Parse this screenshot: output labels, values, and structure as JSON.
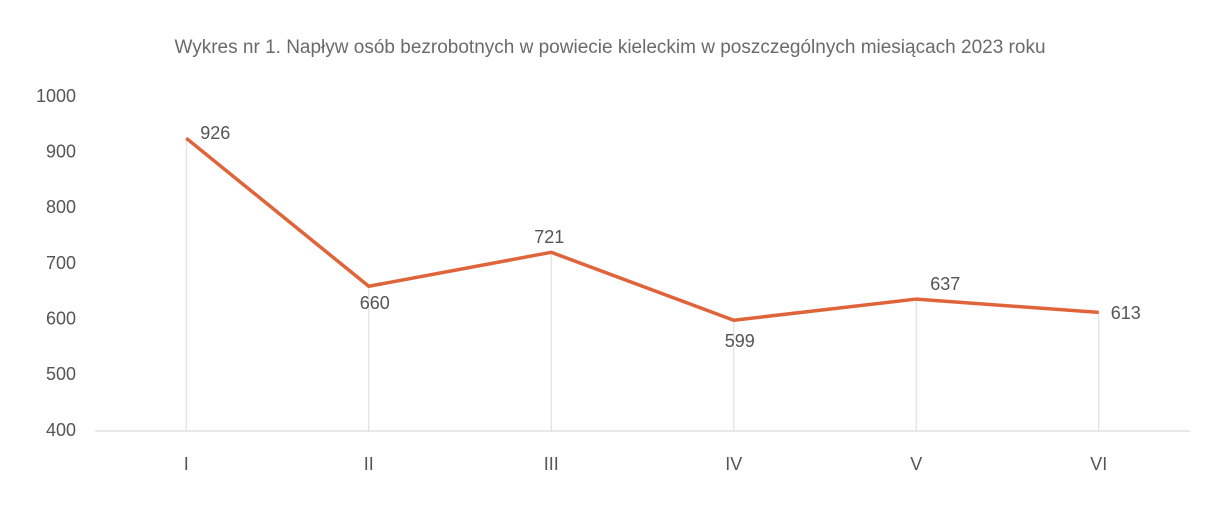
{
  "chart_data": {
    "type": "line",
    "title": "Wykres nr 1. Napływ osób bezrobotnych w powiecie kieleckim w poszczególnych miesiącach 2023 roku",
    "categories": [
      "I",
      "II",
      "III",
      "IV",
      "V",
      "VI"
    ],
    "values": [
      926,
      660,
      721,
      599,
      637,
      613
    ],
    "color": "#e0643a",
    "ylim": [
      400,
      1000
    ],
    "yticks": [
      400,
      500,
      600,
      700,
      800,
      900,
      1000
    ],
    "drop_lines": true
  }
}
